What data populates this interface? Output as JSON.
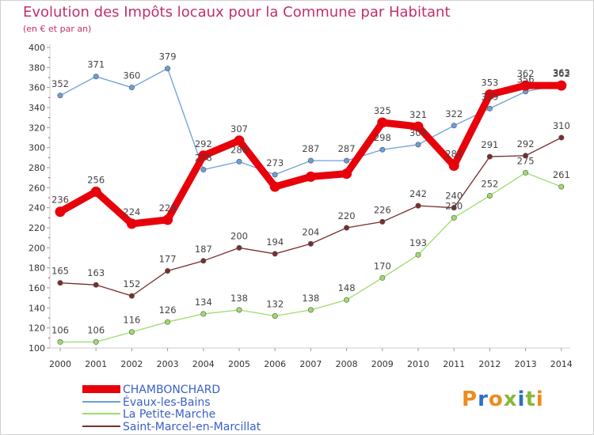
{
  "title": "Evolution des Impôts locaux pour la Commune par Habitant",
  "subtitle": "(en € et par an)",
  "logo": {
    "text": "Proxiti",
    "colors": [
      "#f08a1c",
      "#2d6fc4",
      "#f08a1c",
      "#86b83a",
      "#2d6fc4",
      "#86b83a",
      "#f08a1c"
    ]
  },
  "colors": {
    "axis": "#cccccc",
    "grid": "#ffffff",
    "tick_text": "#333333",
    "value_text": "#444444"
  },
  "chart_data": {
    "type": "line",
    "title": "Evolution des Impôts locaux pour la Commune par Habitant",
    "ylabel": "(en € et par an)",
    "xlabel": "",
    "ylim": [
      100,
      400
    ],
    "yticks": [
      100,
      120,
      140,
      160,
      180,
      200,
      220,
      240,
      260,
      280,
      300,
      320,
      340,
      360,
      380,
      400
    ],
    "x": [
      "2000",
      "2001",
      "2002",
      "2003",
      "2004",
      "2005",
      "2006",
      "2007",
      "2008",
      "2009",
      "2010",
      "2011",
      "2012",
      "2013",
      "2014"
    ],
    "series": [
      {
        "name": "CHAMBONCHARD",
        "color": "#e8000b",
        "thick": true,
        "values": [
          236,
          256,
          224,
          228,
          292,
          307,
          261,
          271,
          274,
          325,
          321,
          282,
          353,
          362,
          362
        ],
        "labels": [
          "236",
          "256",
          "224",
          "228",
          "292",
          "307",
          "",
          "",
          "",
          "325",
          "321",
          "282",
          "353",
          "362",
          "362"
        ]
      },
      {
        "name": "Évaux-les-Bains",
        "color": "#6a9fd8",
        "thick": false,
        "values": [
          352,
          371,
          360,
          379,
          278,
          286,
          273,
          287,
          287,
          298,
          303,
          322,
          339,
          356,
          363
        ],
        "labels": [
          "352",
          "371",
          "360",
          "379",
          "278",
          "286",
          "273",
          "287",
          "287",
          "298",
          "303",
          "322",
          "339",
          "356",
          "363"
        ]
      },
      {
        "name": "La Petite-Marche",
        "color": "#9ddc6b",
        "thick": false,
        "values": [
          106,
          106,
          116,
          126,
          134,
          138,
          132,
          138,
          148,
          170,
          193,
          230,
          252,
          275,
          261
        ],
        "labels": [
          "106",
          "106",
          "116",
          "126",
          "134",
          "138",
          "132",
          "138",
          "148",
          "170",
          "193",
          "230",
          "252",
          "275",
          "261"
        ]
      },
      {
        "name": "Saint-Marcel-en-Marcillat",
        "color": "#7a2d2d",
        "thick": false,
        "values": [
          165,
          163,
          152,
          177,
          187,
          200,
          194,
          204,
          220,
          226,
          242,
          240,
          291,
          292,
          310
        ],
        "labels": [
          "165",
          "163",
          "152",
          "177",
          "187",
          "200",
          "194",
          "204",
          "220",
          "226",
          "242",
          "240",
          "291",
          "292",
          "310"
        ]
      }
    ],
    "legend": [
      "CHAMBONCHARD",
      "Évaux-les-Bains",
      "La Petite-Marche",
      "Saint-Marcel-en-Marcillat"
    ],
    "grid": false
  }
}
